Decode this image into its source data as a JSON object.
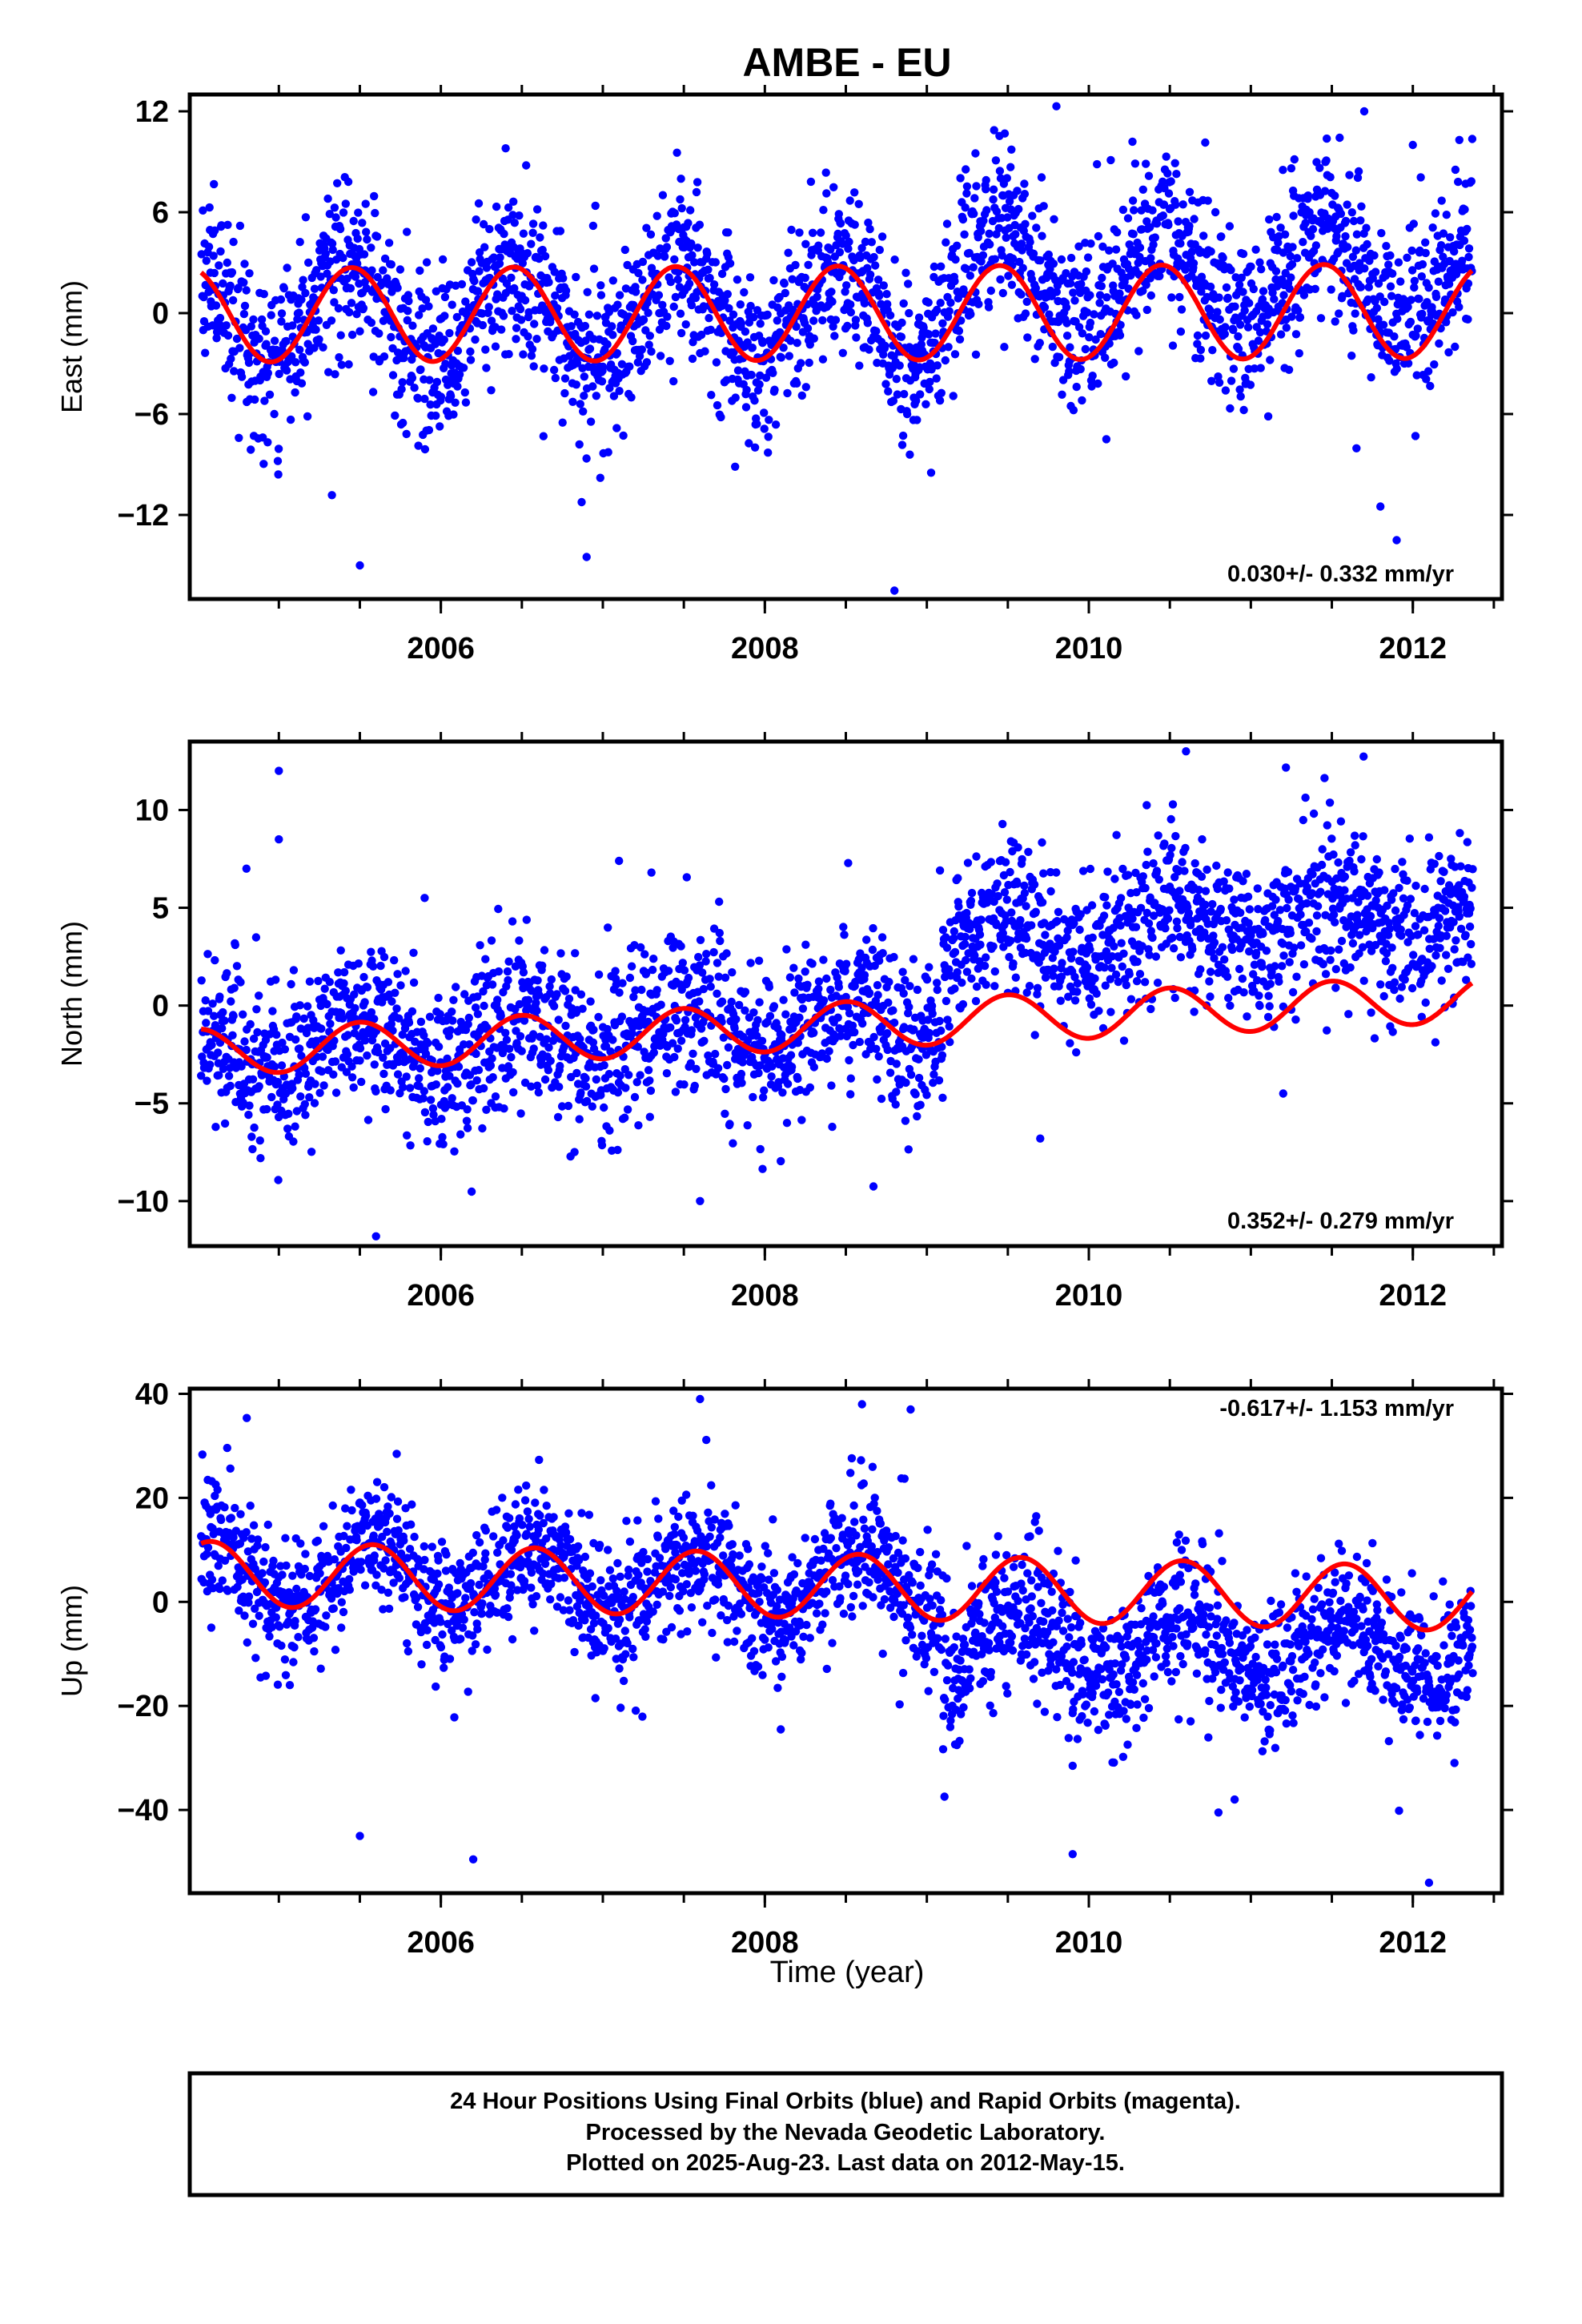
{
  "title": "AMBE - EU",
  "xlabel": "Time (year)",
  "x_tick_labels": [
    "2006",
    "2008",
    "2010",
    "2012"
  ],
  "footer": {
    "line1": "24 Hour Positions Using Final Orbits (blue) and Rapid Orbits (magenta).",
    "line2": "Processed by the Nevada Geodetic Laboratory.",
    "line3": "Plotted on 2025-Aug-23. Last data on 2012-May-15."
  },
  "colors": {
    "points": "#0000ff",
    "model": "#ff0000"
  },
  "chart_data": [
    {
      "type": "scatter",
      "component": "east",
      "ylabel": "East (mm)",
      "rate": "0.030+/- 0.332 mm/yr",
      "xlim": [
        2004.45,
        2012.55
      ],
      "ylim": [
        -17,
        13
      ],
      "yticks": [
        -12,
        -6,
        0,
        6,
        12
      ],
      "ytick_labels": [
        "−12",
        "−6",
        "0",
        "6",
        "12"
      ],
      "model": {
        "offset": 0.0,
        "slope": 0.03,
        "amplitude": 2.8,
        "phase_peak": 0.45,
        "offsets": []
      },
      "scatter": {
        "sigma": 2.5,
        "shift_after_2009_1": 2.0
      },
      "outliers": [
        [
          2005.5,
          -15
        ],
        [
          2006.9,
          -14.5
        ],
        [
          2008.8,
          -16.5
        ],
        [
          2009.3,
          9.5
        ],
        [
          2006.4,
          9.8
        ],
        [
          2009.8,
          12.3
        ],
        [
          2011.7,
          12
        ],
        [
          2011.9,
          -13.5
        ],
        [
          2012.0,
          10
        ],
        [
          2011.8,
          -11.5
        ]
      ]
    },
    {
      "type": "scatter",
      "component": "north",
      "ylabel": "North (mm)",
      "rate": "0.352+/- 0.279 mm/yr",
      "xlim": [
        2004.45,
        2012.55
      ],
      "ylim": [
        -12.3,
        13.5
      ],
      "yticks": [
        -10,
        -5,
        0,
        5,
        10
      ],
      "ytick_labels": [
        "−10",
        "−5",
        "0",
        "5",
        "10"
      ],
      "model": {
        "offset": -1.0,
        "slope": 0.35,
        "amplitude": 1.2,
        "phase_peak": 0.5,
        "offsets": []
      },
      "scatter": {
        "sigma": 2.0,
        "shift_after_2009_1": 4.2
      },
      "outliers": [
        [
          2005.0,
          12
        ],
        [
          2005.0,
          8.5
        ],
        [
          2004.8,
          7
        ],
        [
          2005.6,
          -11.8
        ],
        [
          2007.1,
          7.4
        ],
        [
          2007.3,
          6.8
        ],
        [
          2007.6,
          -10
        ],
        [
          2010.6,
          13
        ],
        [
          2011.2,
          -4.5
        ],
        [
          2009.7,
          -6.8
        ],
        [
          2012.1,
          8.6
        ],
        [
          2005.9,
          5.5
        ]
      ]
    },
    {
      "type": "scatter",
      "component": "up",
      "ylabel": "Up (mm)",
      "rate": "-0.617+/- 1.153 mm/yr",
      "xlim": [
        2004.45,
        2012.55
      ],
      "ylim": [
        -56,
        41
      ],
      "yticks": [
        -40,
        -20,
        0,
        20,
        40
      ],
      "ytick_labels": [
        "−40",
        "−20",
        "0",
        "20",
        "40"
      ],
      "model": {
        "offset": 3.0,
        "slope": -0.617,
        "amplitude": 6.2,
        "phase_peak": 0.58,
        "offsets": []
      },
      "scatter": {
        "sigma": 6.5,
        "shift_after_2009_1": -10.0
      },
      "outliers": [
        [
          2005.5,
          -45
        ],
        [
          2006.2,
          -49.5
        ],
        [
          2009.9,
          -48.5
        ],
        [
          2012.1,
          -54
        ],
        [
          2007.6,
          39
        ],
        [
          2008.6,
          38
        ],
        [
          2010.8,
          -40.5
        ],
        [
          2010.9,
          -38
        ],
        [
          2009.9,
          -31.5
        ],
        [
          2008.9,
          37
        ]
      ]
    }
  ]
}
